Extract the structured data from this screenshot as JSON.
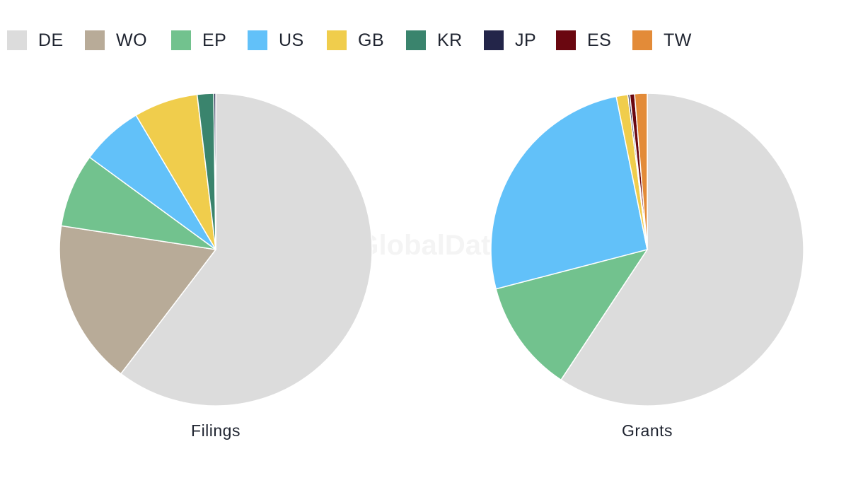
{
  "colors": {
    "DE": "#dcdcdc",
    "WO": "#b8ab98",
    "EP": "#72c28e",
    "US": "#62c1f9",
    "GB": "#f0cd4c",
    "KR": "#3a846d",
    "JP": "#232549",
    "ES": "#6a0710",
    "TW": "#e38b38"
  },
  "legend": [
    "DE",
    "WO",
    "EP",
    "US",
    "GB",
    "KR",
    "JP",
    "ES",
    "TW"
  ],
  "watermark": "GlobalData",
  "chart_data": [
    {
      "type": "pie",
      "title": "Filings",
      "labels": [
        "DE",
        "WO",
        "EP",
        "US",
        "GB",
        "KR",
        "JP"
      ],
      "values": [
        60.2,
        17.0,
        7.6,
        6.4,
        6.6,
        1.7,
        0.2
      ]
    },
    {
      "type": "pie",
      "title": "Grants",
      "labels": [
        "DE",
        "EP",
        "US",
        "GB",
        "JP",
        "ES",
        "TW"
      ],
      "values": [
        59.6,
        11.7,
        26.0,
        1.2,
        0.2,
        0.5,
        1.3
      ]
    }
  ]
}
